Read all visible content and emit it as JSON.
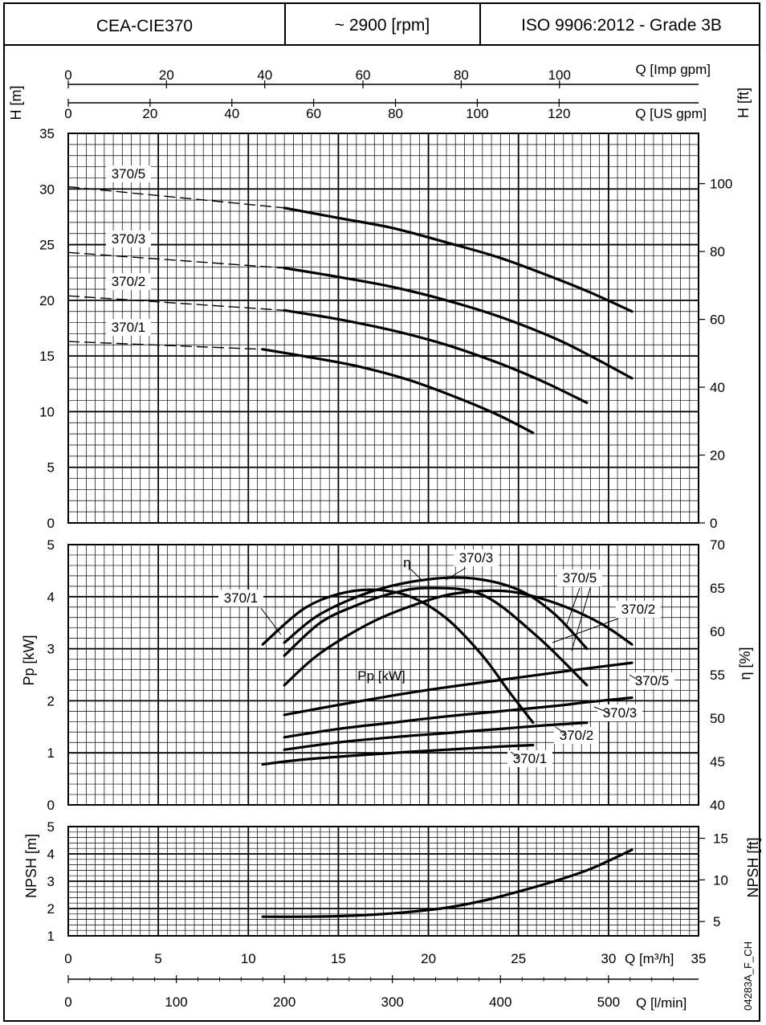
{
  "header": {
    "model": "CEA-CIE370",
    "speed": "~ 2900 [rpm]",
    "standard": "ISO 9906:2012 - Grade 3B"
  },
  "side_code": "04283A_F_CH",
  "chart_data": [
    {
      "type": "line",
      "panel": "head",
      "ylabel": "H [m]",
      "y2label": "H [ft]",
      "ylim": [
        0,
        35
      ],
      "yticks": [
        "0",
        "5",
        "10",
        "15",
        "20",
        "25",
        "30",
        "35"
      ],
      "y2ticks": [
        "0",
        "20",
        "40",
        "60",
        "80",
        "100"
      ],
      "y2_values": [
        0,
        20,
        40,
        60,
        80,
        100
      ],
      "top_axes": [
        {
          "label": "Q [Imp gpm]",
          "ticks": [
            "0",
            "20",
            "40",
            "60",
            "80",
            "100"
          ],
          "values": [
            0,
            20,
            40,
            60,
            80,
            100
          ]
        },
        {
          "label": "Q [US gpm]",
          "ticks": [
            "0",
            "20",
            "40",
            "60",
            "80",
            "100",
            "120"
          ],
          "values": [
            0,
            20,
            40,
            60,
            80,
            100,
            120
          ]
        }
      ],
      "series": [
        {
          "name": "370/5",
          "dashed": {
            "x": [
              0,
              12
            ],
            "y": [
              30.2,
              28.3
            ]
          },
          "solid": {
            "x": [
              12,
              15,
              18,
              21,
              24,
              27,
              29,
              31.3
            ],
            "y": [
              28.3,
              27.4,
              26.5,
              25.2,
              23.8,
              22.0,
              20.7,
              19.0
            ]
          }
        },
        {
          "name": "370/3",
          "dashed": {
            "x": [
              0,
              12
            ],
            "y": [
              24.3,
              22.9
            ]
          },
          "solid": {
            "x": [
              12,
              15,
              18,
              21,
              24,
              27,
              29,
              31.3
            ],
            "y": [
              22.9,
              22.1,
              21.2,
              20.0,
              18.5,
              16.6,
              15.0,
              13.0
            ]
          }
        },
        {
          "name": "370/2",
          "dashed": {
            "x": [
              0,
              12
            ],
            "y": [
              20.4,
              19.1
            ]
          },
          "solid": {
            "x": [
              12,
              15,
              18,
              21,
              24,
              26.5,
              28.8
            ],
            "y": [
              19.1,
              18.3,
              17.3,
              16.0,
              14.3,
              12.6,
              10.8
            ]
          }
        },
        {
          "name": "370/1",
          "dashed": {
            "x": [
              0,
              10.8
            ],
            "y": [
              16.3,
              15.6
            ]
          },
          "solid": {
            "x": [
              10.8,
              13,
              16,
              19,
              22,
              24,
              25.8
            ],
            "y": [
              15.6,
              15.0,
              14.1,
              12.8,
              11.0,
              9.6,
              8.1
            ]
          }
        }
      ]
    },
    {
      "type": "line",
      "panel": "power_efficiency",
      "ylabel": "Pp [kW]",
      "y2label": "η [%]",
      "ylim": [
        0,
        5
      ],
      "y2lim": [
        40,
        70
      ],
      "yticks": [
        "0",
        "1",
        "2",
        "3",
        "4",
        "5"
      ],
      "y2ticks": [
        "40",
        "45",
        "50",
        "55",
        "60",
        "65",
        "70"
      ],
      "eta_label": "η",
      "pp_label": "Pp [kW]",
      "efficiency_series": [
        {
          "name": "370/1",
          "x": [
            10.8,
            13,
            15,
            17,
            19,
            21,
            23,
            24.5,
            25.8
          ],
          "y": [
            58.5,
            62.5,
            64.3,
            64.8,
            64.0,
            61.5,
            57.2,
            53.0,
            49.5
          ]
        },
        {
          "name": "370/3",
          "x": [
            12,
            14,
            17,
            20,
            22.5,
            25,
            27,
            28.8
          ],
          "y": [
            58.7,
            62.0,
            64.7,
            66.0,
            66.1,
            64.8,
            62.0,
            58.0
          ]
        },
        {
          "name": "370/2",
          "x": [
            12,
            14,
            16,
            18,
            20,
            23,
            26,
            28.8
          ],
          "y": [
            57.2,
            61.0,
            63.0,
            64.4,
            65.0,
            64.2,
            59.5,
            53.8
          ]
        },
        {
          "name": "370/5",
          "x": [
            12,
            14,
            17,
            20,
            22,
            24.5,
            27,
            29.5,
            31.3
          ],
          "y": [
            53.8,
            57.5,
            61.2,
            63.6,
            64.5,
            64.6,
            63.3,
            61.0,
            58.5
          ]
        }
      ],
      "power_series": [
        {
          "name": "370/5",
          "x": [
            12,
            15,
            18,
            21,
            24,
            27,
            29,
            31.3
          ],
          "y": [
            1.73,
            1.92,
            2.1,
            2.26,
            2.4,
            2.54,
            2.63,
            2.73
          ]
        },
        {
          "name": "370/3",
          "x": [
            12,
            15,
            18,
            21,
            24,
            27,
            29,
            31.3
          ],
          "y": [
            1.3,
            1.46,
            1.58,
            1.7,
            1.8,
            1.9,
            1.98,
            2.06
          ]
        },
        {
          "name": "370/2",
          "x": [
            12,
            15,
            18,
            21,
            24,
            26.5,
            28.8
          ],
          "y": [
            1.06,
            1.2,
            1.3,
            1.38,
            1.46,
            1.53,
            1.58
          ]
        },
        {
          "name": "370/1",
          "x": [
            10.8,
            13,
            16,
            19,
            22,
            24,
            25.8
          ],
          "y": [
            0.78,
            0.87,
            0.95,
            1.02,
            1.08,
            1.12,
            1.15
          ]
        }
      ]
    },
    {
      "type": "line",
      "panel": "npsh",
      "ylabel": "NPSH [m]",
      "y2label": "NPSH [ft]",
      "ylim": [
        1,
        5
      ],
      "yticks": [
        "1",
        "2",
        "3",
        "4",
        "5"
      ],
      "y2ticks": [
        "5",
        "10",
        "15"
      ],
      "y2_values": [
        5,
        10,
        15
      ],
      "xlabel": "Q [m³/h]",
      "xlim": [
        0,
        35
      ],
      "xticks": [
        "0",
        "5",
        "10",
        "15",
        "20",
        "25",
        "30",
        "35"
      ],
      "x2label": "Q [l/min]",
      "x2ticks": [
        "0",
        "100",
        "200",
        "300",
        "400",
        "500"
      ],
      "x2_values": [
        0,
        100,
        200,
        300,
        400,
        500
      ],
      "series": [
        {
          "name": "NPSH",
          "x": [
            10.8,
            13,
            15,
            17,
            19,
            21,
            23,
            25,
            27,
            29,
            31.3
          ],
          "y": [
            1.7,
            1.7,
            1.72,
            1.78,
            1.88,
            2.03,
            2.28,
            2.62,
            3.0,
            3.45,
            4.15
          ]
        }
      ]
    }
  ]
}
